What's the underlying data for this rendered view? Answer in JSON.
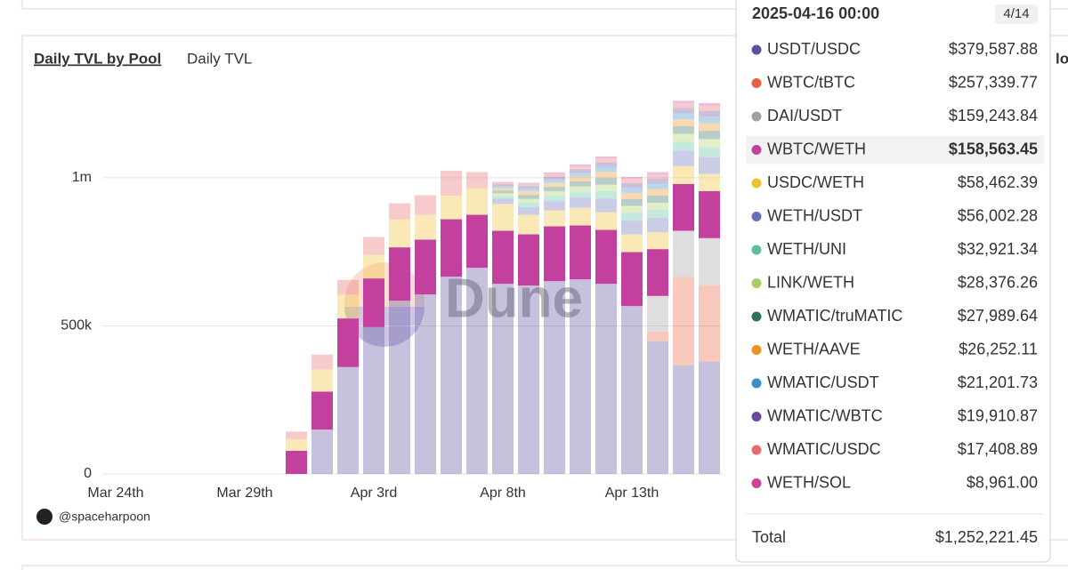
{
  "chart_data": {
    "type": "stacked_bar",
    "tabs": [
      "Daily TVL by Pool",
      "Daily TVL"
    ],
    "author": "@spaceharpoon",
    "watermark": "Dune",
    "side_text": "lo",
    "categories": [
      "Mar 24th",
      null,
      null,
      null,
      null,
      "Mar 29th",
      null,
      null,
      null,
      null,
      "Apr 3rd",
      null,
      null,
      null,
      null,
      "Apr 8th",
      null,
      null,
      null,
      null,
      "Apr 13th",
      null,
      null,
      null
    ],
    "ylim": [
      0,
      1300000
    ],
    "yticks": [
      0,
      {
        "value": 500000,
        "label": "500k"
      },
      {
        "value": 1000000,
        "label": "1m"
      }
    ],
    "grid": true,
    "series": [
      {
        "name": "USDT/USDC",
        "color": "#5b4fa0",
        "opacity": 0.35,
        "values": [
          0,
          0,
          0,
          0,
          0,
          0,
          0,
          0,
          150000,
          361000,
          496000,
          585000,
          606000,
          666000,
          696000,
          642000,
          636000,
          651000,
          657000,
          642000,
          567000,
          448000,
          367000,
          379587.88
        ]
      },
      {
        "name": "WBTC/tBTC",
        "color": "#e8603c",
        "opacity": 0.35,
        "values": [
          0,
          0,
          0,
          0,
          0,
          0,
          0,
          0,
          0,
          0,
          0,
          0,
          0,
          0,
          0,
          0,
          0,
          0,
          0,
          0,
          0,
          33000,
          299000,
          257339.77
        ]
      },
      {
        "name": "DAI/USDT",
        "color": "#a0a0a0",
        "opacity": 0.35,
        "values": [
          0,
          0,
          0,
          0,
          0,
          0,
          0,
          0,
          0,
          0,
          0,
          0,
          0,
          0,
          0,
          0,
          0,
          0,
          0,
          0,
          0,
          120000,
          155000,
          159243.84
        ]
      },
      {
        "name": "WBTC/WETH",
        "color": "#c4409e",
        "opacity": 1,
        "values": [
          0,
          0,
          0,
          0,
          0,
          0,
          0,
          78000,
          128000,
          164000,
          164000,
          180000,
          185000,
          194000,
          179000,
          179000,
          173000,
          185000,
          182000,
          182000,
          182000,
          158000,
          158000,
          158563.45
        ]
      },
      {
        "name": "USDC/WETH",
        "color": "#f0c030",
        "opacity": 0.35,
        "values": [
          0,
          0,
          0,
          0,
          0,
          0,
          0,
          40000,
          75000,
          80000,
          80000,
          95000,
          84000,
          80000,
          90000,
          90000,
          66000,
          54000,
          60000,
          60000,
          60000,
          57000,
          60000,
          58462.39
        ]
      },
      {
        "name": "WETH/USDT",
        "color": "#6a6db8",
        "opacity": 0.35,
        "values": [
          0,
          0,
          0,
          0,
          0,
          0,
          0,
          0,
          0,
          0,
          0,
          0,
          0,
          0,
          0,
          18000,
          26000,
          31000,
          35000,
          45000,
          46000,
          48000,
          52000,
          56002.28
        ]
      },
      {
        "name": "WETH/UNI",
        "color": "#5cc0a0",
        "opacity": 0.35,
        "values": [
          0,
          0,
          0,
          0,
          0,
          0,
          0,
          0,
          0,
          0,
          0,
          0,
          0,
          0,
          0,
          10000,
          15000,
          18000,
          20000,
          26000,
          27000,
          28000,
          31000,
          32921.34
        ]
      },
      {
        "name": "LINK/WETH",
        "color": "#a8d060",
        "opacity": 0.35,
        "values": [
          0,
          0,
          0,
          0,
          0,
          0,
          0,
          0,
          0,
          0,
          0,
          0,
          0,
          0,
          0,
          9000,
          13000,
          15000,
          17000,
          22000,
          23000,
          24000,
          26000,
          28376.26
        ]
      },
      {
        "name": "WMATIC/truMATIC",
        "color": "#2e7060",
        "opacity": 0.35,
        "values": [
          0,
          0,
          0,
          0,
          0,
          0,
          0,
          0,
          0,
          0,
          0,
          0,
          0,
          0,
          0,
          9000,
          13000,
          15000,
          17000,
          22000,
          23000,
          24000,
          26000,
          27989.64
        ]
      },
      {
        "name": "WETH/AAVE",
        "color": "#f09020",
        "opacity": 0.35,
        "values": [
          0,
          0,
          0,
          0,
          0,
          0,
          0,
          0,
          0,
          0,
          0,
          0,
          0,
          0,
          0,
          8000,
          12000,
          14000,
          16000,
          21000,
          21000,
          22000,
          24000,
          26252.11
        ]
      },
      {
        "name": "WMATIC/USDT",
        "color": "#3a90c8",
        "opacity": 0.35,
        "values": [
          0,
          0,
          0,
          0,
          0,
          0,
          0,
          0,
          0,
          0,
          0,
          0,
          0,
          0,
          0,
          7000,
          9000,
          11000,
          13000,
          17000,
          17000,
          18000,
          20000,
          21201.73
        ]
      },
      {
        "name": "WMATIC/WBTC",
        "color": "#6a4a9a",
        "opacity": 0.35,
        "values": [
          0,
          0,
          0,
          0,
          0,
          0,
          0,
          0,
          0,
          0,
          0,
          0,
          0,
          0,
          0,
          6000,
          9000,
          10000,
          12000,
          15000,
          16000,
          17000,
          18000,
          19910.87
        ]
      },
      {
        "name": "WMATIC/USDC",
        "color": "#e86a6a",
        "opacity": 0.35,
        "values": [
          0,
          0,
          0,
          0,
          0,
          0,
          0,
          25000,
          50000,
          50000,
          60000,
          54000,
          66000,
          84000,
          54000,
          5000,
          7000,
          9000,
          10000,
          13000,
          14000,
          15000,
          16000,
          17408.89
        ]
      },
      {
        "name": "WETH/SOL",
        "color": "#d0409a",
        "opacity": 0.35,
        "values": [
          0,
          0,
          0,
          0,
          0,
          0,
          0,
          0,
          0,
          0,
          0,
          0,
          0,
          0,
          0,
          3000,
          4000,
          5000,
          6000,
          7000,
          7000,
          7000,
          8000,
          8961
        ]
      }
    ],
    "tooltip": {
      "title": "2025-04-16 00:00",
      "counter": "4/14",
      "highlight": 3,
      "labels": [
        "$379,587.88",
        "$257,339.77",
        "$159,243.84",
        "$158,563.45",
        "$58,462.39",
        "$56,002.28",
        "$32,921.34",
        "$28,376.26",
        "$27,989.64",
        "$26,252.11",
        "$21,201.73",
        "$19,910.87",
        "$17,408.89",
        "$8,961.00"
      ],
      "total_label": "Total",
      "total": "$1,252,221.45"
    }
  }
}
